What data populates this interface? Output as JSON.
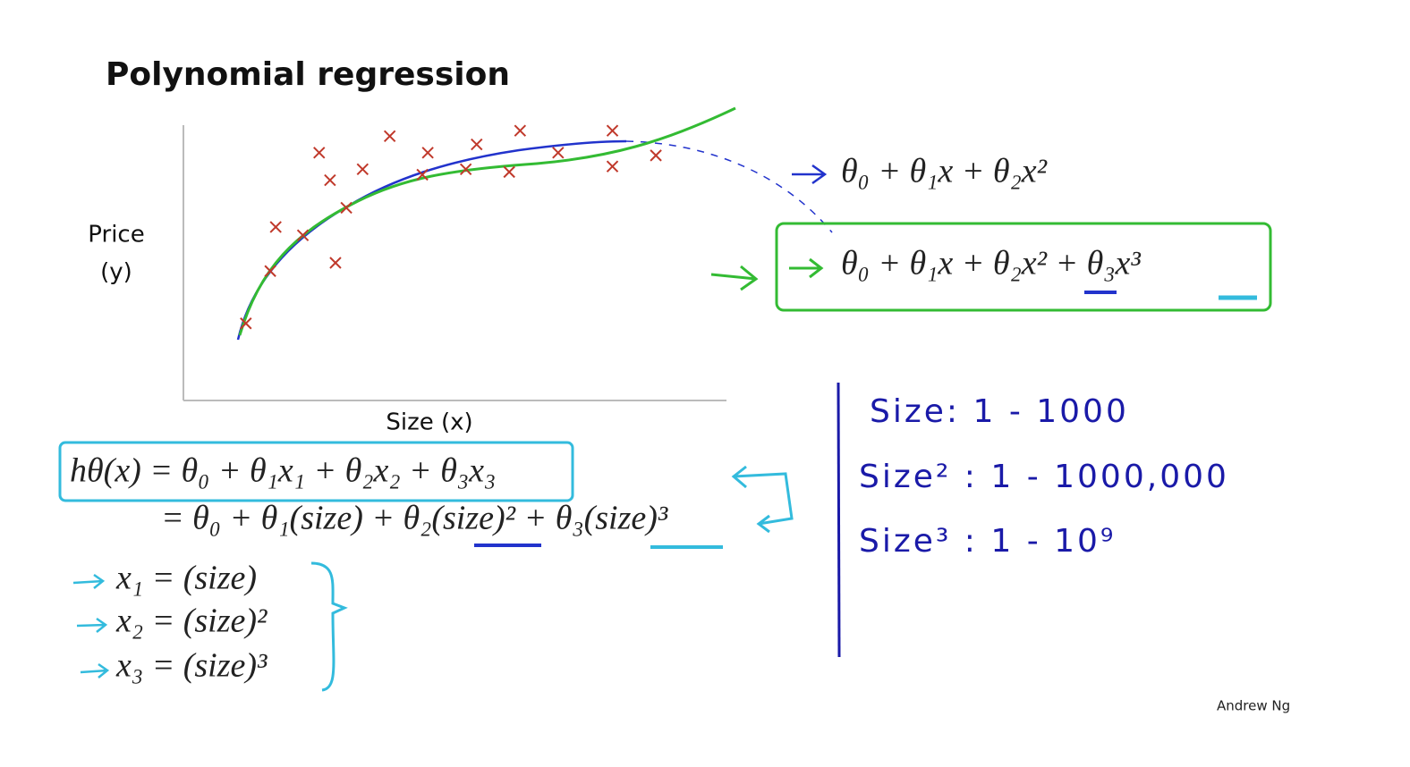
{
  "title": "Polynomial regression",
  "chart_data": {
    "type": "scatter",
    "x_label": "Size (x)",
    "y_label": [
      "Price",
      "(y)"
    ],
    "x": [
      1.15,
      1.6,
      1.7,
      2.2,
      2.8,
      3.0,
      2.5,
      2.7,
      3.3,
      3.8,
      4.4,
      4.5,
      5.2,
      5.4,
      6.0,
      6.2,
      6.9,
      7.9,
      7.9,
      8.7
    ],
    "y": [
      2.8,
      4.7,
      6.3,
      6.0,
      5.0,
      7.0,
      9.0,
      8.0,
      8.4,
      9.6,
      8.2,
      9.0,
      8.4,
      9.3,
      8.3,
      9.8,
      9.0,
      9.8,
      8.5,
      8.9
    ],
    "xlim": [
      0,
      10
    ],
    "ylim": [
      0,
      10
    ],
    "color": "#c0392b"
  },
  "hypotheses": [
    "θ₀ + θ₁x + θ₂x²",
    "θ₀ + θ₁x + θ₂x² + θ₃x³"
  ],
  "model": [
    "hθ(x) = θ₀ + θ₁x₁ + θ₂x₂ + θ₃x₃",
    "= θ₀ + θ₁(size) + θ₂(size)² + θ₃(size)³"
  ],
  "features": [
    "x₁ = (size)",
    "x₂ = (size)²",
    "x₃ = (size)³"
  ],
  "notes": [
    "Size:  1 - 1000",
    "Size² :  1 - 1000,000",
    "Size³ :  1 - 10⁹"
  ],
  "footer": "Andrew Ng"
}
